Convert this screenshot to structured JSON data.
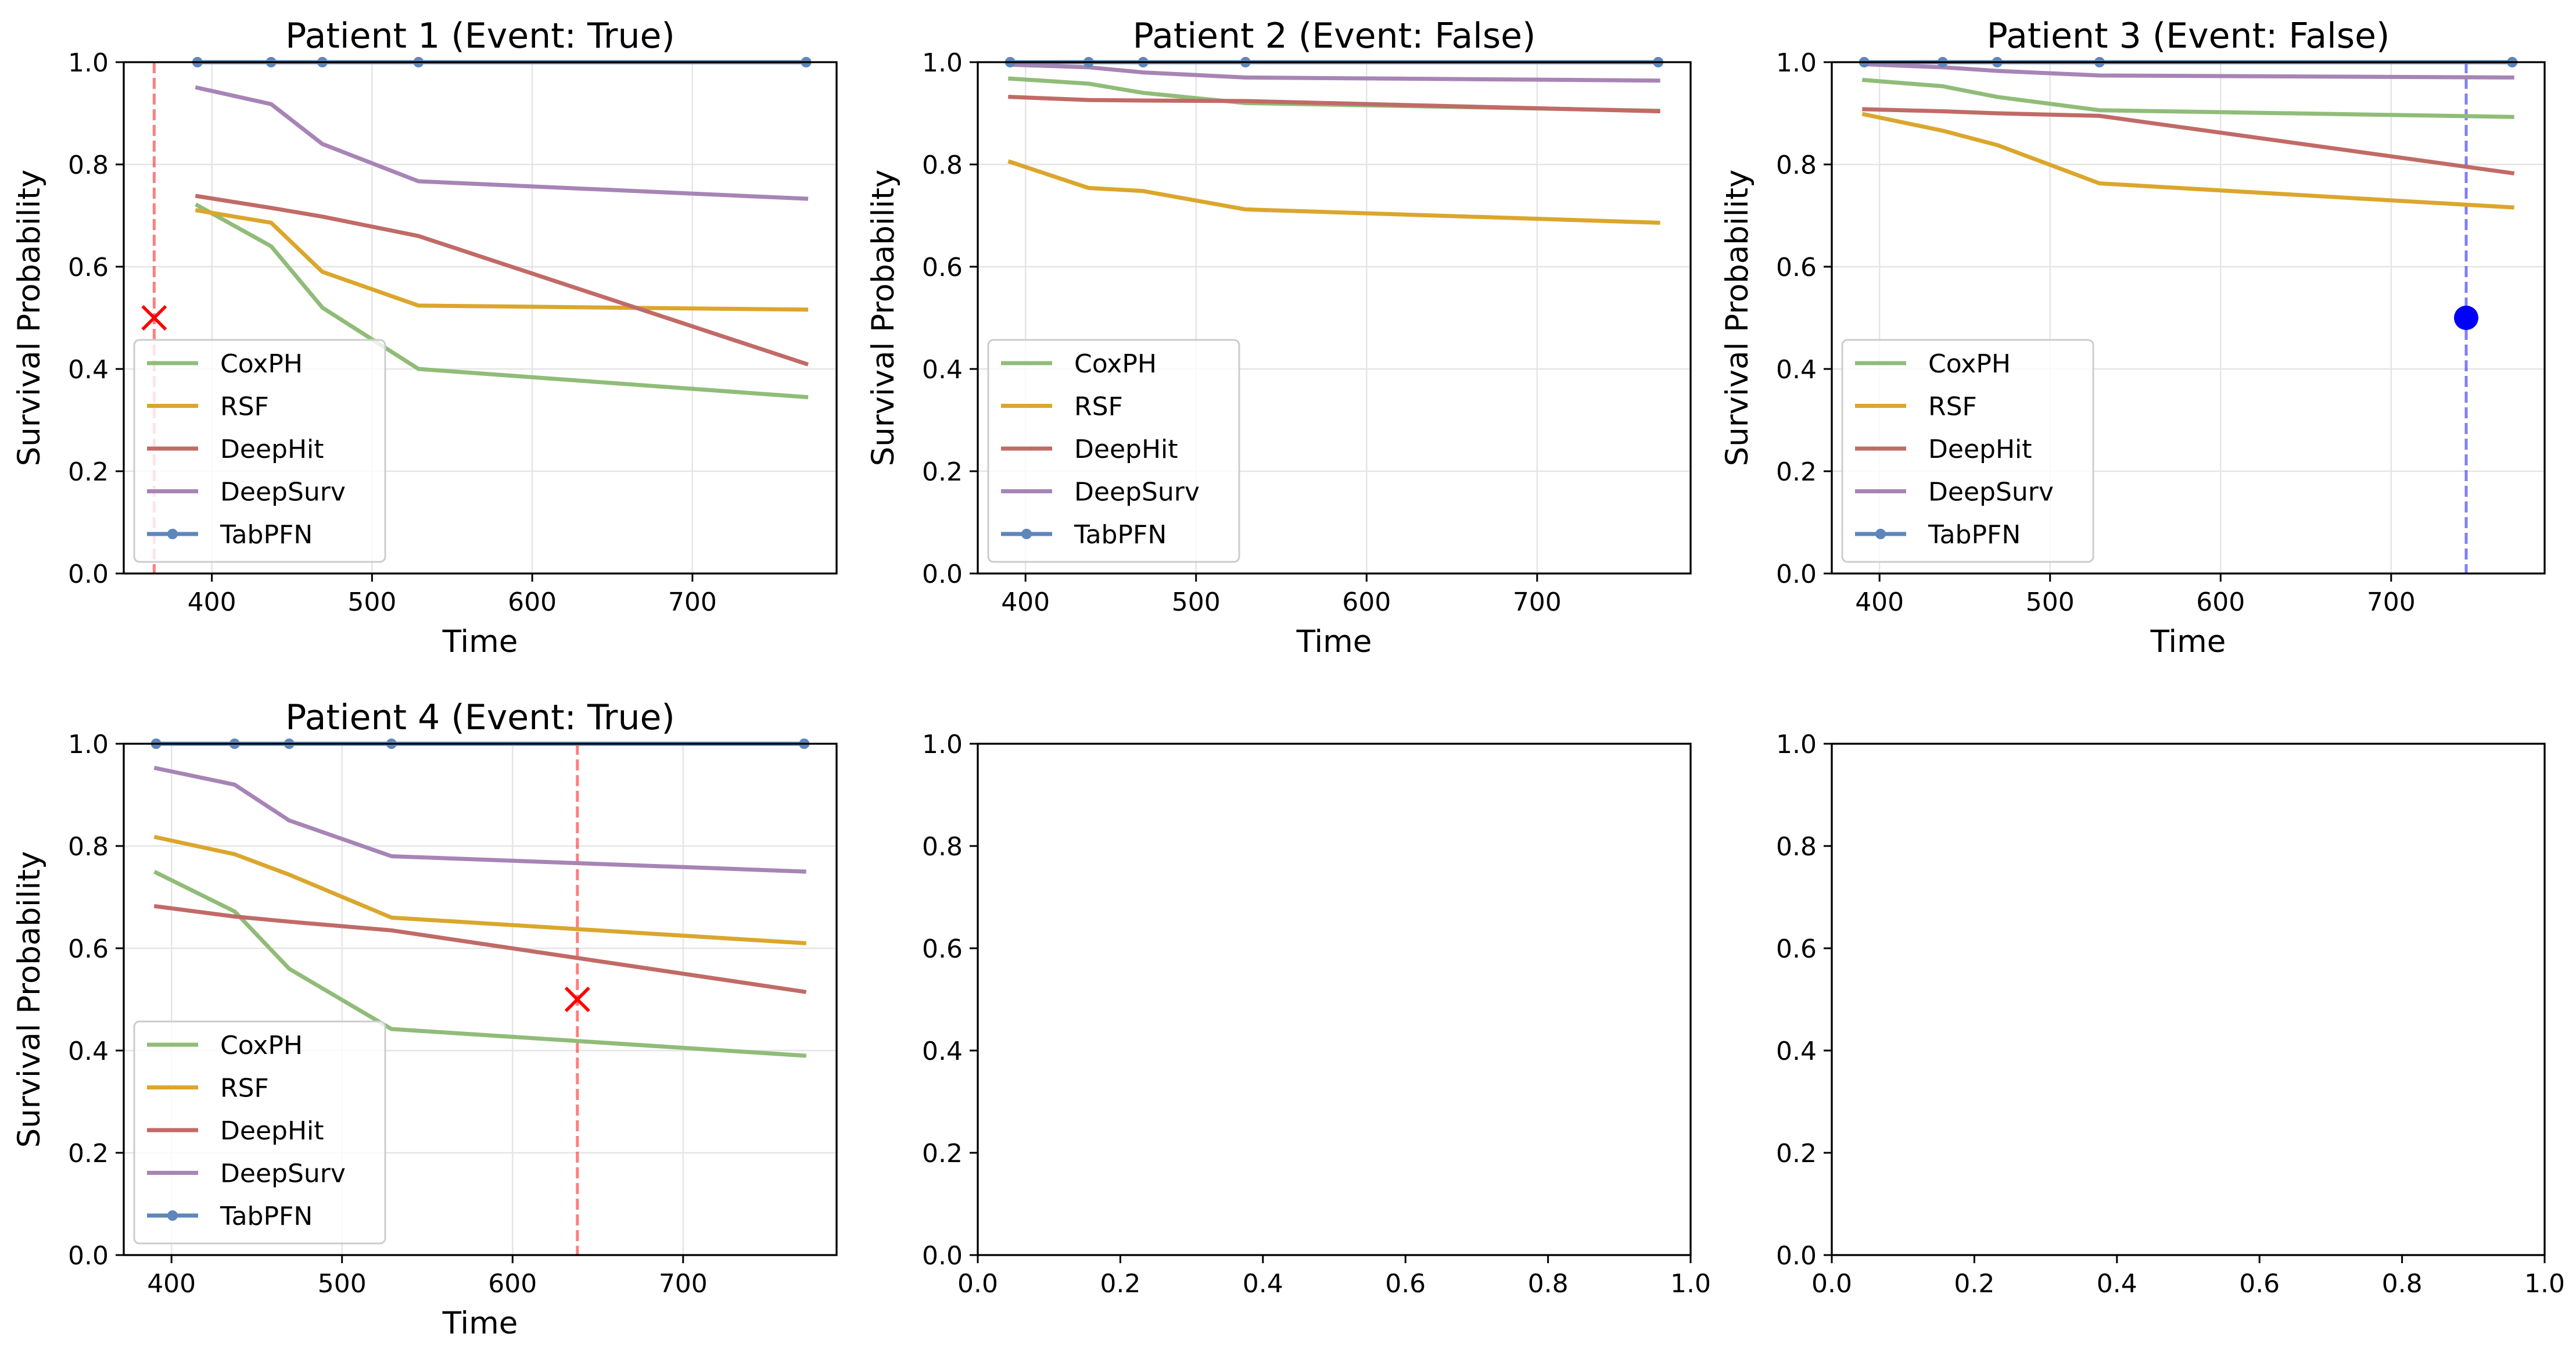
{
  "figure": {
    "background": "#ffffff"
  },
  "chart_data": [
    {
      "type": "line",
      "title": "Patient 1 (Event: True)",
      "xlabel": "Time",
      "ylabel": "Survival Probability",
      "xlim": [
        345,
        790
      ],
      "ylim": [
        0.0,
        1.0
      ],
      "xticks": [
        400,
        500,
        600,
        700
      ],
      "yticks": [
        0.0,
        0.2,
        0.4,
        0.6,
        0.8,
        1.0
      ],
      "ytick_labels": [
        "0.0",
        "0.2",
        "0.4",
        "0.6",
        "0.8",
        "1.0"
      ],
      "grid": true,
      "legend_position": "lower-left",
      "x": [
        391,
        437,
        469,
        529,
        771
      ],
      "series": [
        {
          "name": "CoxPH",
          "color": "#90bc78",
          "values": [
            0.72,
            0.64,
            0.52,
            0.4,
            0.345
          ]
        },
        {
          "name": "RSF",
          "color": "#dba62c",
          "values": [
            0.71,
            0.686,
            0.59,
            0.524,
            0.516
          ]
        },
        {
          "name": "DeepHit",
          "color": "#c16a67",
          "values": [
            0.738,
            0.715,
            0.698,
            0.66,
            0.41
          ]
        },
        {
          "name": "DeepSurv",
          "color": "#a784b6",
          "values": [
            0.95,
            0.918,
            0.84,
            0.767,
            0.733
          ]
        },
        {
          "name": "TabPFN",
          "color": "#5d86bb",
          "values": [
            1.0,
            1.0,
            1.0,
            1.0,
            1.0
          ],
          "markers": true
        }
      ],
      "event_marker": {
        "time": 364,
        "prob": 0.5,
        "observed": true,
        "color": "#ff0000"
      }
    },
    {
      "type": "line",
      "title": "Patient 2 (Event: False)",
      "xlabel": "Time",
      "ylabel": "Survival Probability",
      "xlim": [
        372,
        790
      ],
      "ylim": [
        0.0,
        1.0
      ],
      "xticks": [
        400,
        500,
        600,
        700
      ],
      "yticks": [
        0.0,
        0.2,
        0.4,
        0.6,
        0.8,
        1.0
      ],
      "ytick_labels": [
        "0.0",
        "0.2",
        "0.4",
        "0.6",
        "0.8",
        "1.0"
      ],
      "grid": true,
      "legend_position": "lower-left",
      "x": [
        391,
        437,
        469,
        529,
        771
      ],
      "series": [
        {
          "name": "CoxPH",
          "color": "#90bc78",
          "values": [
            0.968,
            0.958,
            0.94,
            0.92,
            0.905
          ]
        },
        {
          "name": "RSF",
          "color": "#dba62c",
          "values": [
            0.805,
            0.754,
            0.748,
            0.712,
            0.686
          ]
        },
        {
          "name": "DeepHit",
          "color": "#c16a67",
          "values": [
            0.932,
            0.926,
            0.925,
            0.924,
            0.904
          ]
        },
        {
          "name": "DeepSurv",
          "color": "#a784b6",
          "values": [
            0.995,
            0.99,
            0.98,
            0.97,
            0.964
          ]
        },
        {
          "name": "TabPFN",
          "color": "#5d86bb",
          "values": [
            1.0,
            1.0,
            1.0,
            1.0,
            1.0
          ],
          "markers": true
        }
      ]
    },
    {
      "type": "line",
      "title": "Patient 3 (Event: False)",
      "xlabel": "Time",
      "ylabel": "Survival Probability",
      "xlim": [
        372,
        790
      ],
      "ylim": [
        0.0,
        1.0
      ],
      "xticks": [
        400,
        500,
        600,
        700
      ],
      "yticks": [
        0.0,
        0.2,
        0.4,
        0.6,
        0.8,
        1.0
      ],
      "ytick_labels": [
        "0.0",
        "0.2",
        "0.4",
        "0.6",
        "0.8",
        "1.0"
      ],
      "grid": true,
      "legend_position": "lower-left",
      "x": [
        391,
        437,
        469,
        529,
        771
      ],
      "series": [
        {
          "name": "CoxPH",
          "color": "#90bc78",
          "values": [
            0.965,
            0.953,
            0.932,
            0.906,
            0.893
          ]
        },
        {
          "name": "RSF",
          "color": "#dba62c",
          "values": [
            0.898,
            0.866,
            0.838,
            0.763,
            0.716
          ]
        },
        {
          "name": "DeepHit",
          "color": "#c16a67",
          "values": [
            0.908,
            0.904,
            0.9,
            0.895,
            0.783
          ]
        },
        {
          "name": "DeepSurv",
          "color": "#a784b6",
          "values": [
            0.996,
            0.99,
            0.983,
            0.974,
            0.97
          ]
        },
        {
          "name": "TabPFN",
          "color": "#5d86bb",
          "values": [
            1.0,
            1.0,
            1.0,
            1.0,
            1.0
          ],
          "markers": true
        }
      ],
      "event_marker": {
        "time": 744,
        "prob": 0.5,
        "observed": false,
        "color": "#0000ff"
      }
    },
    {
      "type": "line",
      "title": "Patient 4 (Event: True)",
      "xlabel": "Time",
      "ylabel": "Survival Probability",
      "xlim": [
        372,
        790
      ],
      "ylim": [
        0.0,
        1.0
      ],
      "xticks": [
        400,
        500,
        600,
        700
      ],
      "yticks": [
        0.0,
        0.2,
        0.4,
        0.6,
        0.8,
        1.0
      ],
      "ytick_labels": [
        "0.0",
        "0.2",
        "0.4",
        "0.6",
        "0.8",
        "1.0"
      ],
      "grid": true,
      "legend_position": "lower-left",
      "x": [
        391,
        437,
        469,
        529,
        771
      ],
      "series": [
        {
          "name": "CoxPH",
          "color": "#90bc78",
          "values": [
            0.748,
            0.672,
            0.56,
            0.442,
            0.39
          ]
        },
        {
          "name": "RSF",
          "color": "#dba62c",
          "values": [
            0.817,
            0.784,
            0.744,
            0.66,
            0.61
          ]
        },
        {
          "name": "DeepHit",
          "color": "#c16a67",
          "values": [
            0.682,
            0.662,
            0.652,
            0.635,
            0.515
          ]
        },
        {
          "name": "DeepSurv",
          "color": "#a784b6",
          "values": [
            0.952,
            0.92,
            0.85,
            0.78,
            0.75
          ]
        },
        {
          "name": "TabPFN",
          "color": "#5d86bb",
          "values": [
            1.0,
            1.0,
            1.0,
            1.0,
            1.0
          ],
          "markers": true
        }
      ],
      "event_marker": {
        "time": 638,
        "prob": 0.5,
        "observed": true,
        "color": "#ff0000"
      }
    },
    {
      "type": "line",
      "title": "",
      "xlabel": "",
      "ylabel": "",
      "xlim": [
        0.0,
        1.0
      ],
      "ylim": [
        0.0,
        1.0
      ],
      "xticks": [
        0.0,
        0.2,
        0.4,
        0.6,
        0.8,
        1.0
      ],
      "xtick_labels": [
        "0.0",
        "0.2",
        "0.4",
        "0.6",
        "0.8",
        "1.0"
      ],
      "yticks": [
        0.0,
        0.2,
        0.4,
        0.6,
        0.8,
        1.0
      ],
      "ytick_labels": [
        "0.0",
        "0.2",
        "0.4",
        "0.6",
        "0.8",
        "1.0"
      ],
      "grid": false,
      "series": []
    },
    {
      "type": "line",
      "title": "",
      "xlabel": "",
      "ylabel": "",
      "xlim": [
        0.0,
        1.0
      ],
      "ylim": [
        0.0,
        1.0
      ],
      "xticks": [
        0.0,
        0.2,
        0.4,
        0.6,
        0.8,
        1.0
      ],
      "xtick_labels": [
        "0.0",
        "0.2",
        "0.4",
        "0.6",
        "0.8",
        "1.0"
      ],
      "yticks": [
        0.0,
        0.2,
        0.4,
        0.6,
        0.8,
        1.0
      ],
      "ytick_labels": [
        "0.0",
        "0.2",
        "0.4",
        "0.6",
        "0.8",
        "1.0"
      ],
      "grid": false,
      "series": []
    }
  ]
}
